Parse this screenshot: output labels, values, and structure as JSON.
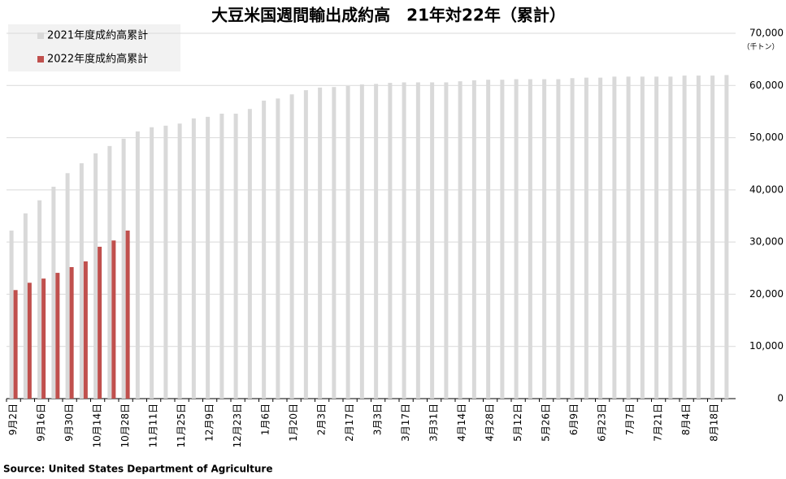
{
  "chart_data": {
    "type": "bar",
    "title": "大豆米国週間輸出成約高　21年対22年（累計）",
    "y_axis_unit": "（千トン）",
    "source": "Source: United States Department of Agriculture",
    "categories": [
      "9月2日",
      null,
      "9月16日",
      null,
      "9月30日",
      null,
      "10月14日",
      null,
      "10月28日",
      null,
      "11月11日",
      null,
      "11月25日",
      null,
      "12月9日",
      null,
      "12月23日",
      null,
      "1月6日",
      null,
      "1月20日",
      null,
      "2月3日",
      null,
      "2月17日",
      null,
      "3月3日",
      null,
      "3月17日",
      null,
      "3月31日",
      null,
      "4月14日",
      null,
      "4月28日",
      null,
      "5月12日",
      null,
      "5月26日",
      null,
      "6月9日",
      null,
      "6月23日",
      null,
      "7月7日",
      null,
      "7月21日",
      null,
      "8月4日",
      null,
      "8月18日",
      null
    ],
    "series": [
      {
        "name": "2021年度成約高累計",
        "color": "#d9d9d9",
        "values": [
          32200,
          35500,
          38000,
          40600,
          43200,
          45100,
          47000,
          48400,
          49800,
          51200,
          52000,
          52300,
          52700,
          53700,
          54000,
          54600,
          54600,
          55500,
          57100,
          57500,
          58300,
          59100,
          59600,
          59700,
          59900,
          60200,
          60300,
          60500,
          60600,
          60600,
          60600,
          60600,
          60800,
          61000,
          61100,
          61100,
          61200,
          61200,
          61200,
          61200,
          61400,
          61500,
          61500,
          61700,
          61700,
          61700,
          61700,
          61700,
          61900,
          61900,
          61900,
          62000
        ]
      },
      {
        "name": "2022年度成約高累計",
        "color": "#c0504d",
        "values": [
          20800,
          22200,
          23000,
          24100,
          25200,
          26300,
          29100,
          30300,
          32200,
          null,
          null,
          null,
          null,
          null,
          null,
          null,
          null,
          null,
          null,
          null,
          null,
          null,
          null,
          null,
          null,
          null,
          null,
          null,
          null,
          null,
          null,
          null,
          null,
          null,
          null,
          null,
          null,
          null,
          null,
          null,
          null,
          null,
          null,
          null,
          null,
          null,
          null,
          null,
          null,
          null,
          null,
          null
        ]
      }
    ],
    "ylim": [
      0,
      70000
    ],
    "yticks": [
      0,
      {
        "value": 10000,
        "label": "10,000"
      },
      {
        "value": 20000,
        "label": "20,000"
      },
      {
        "value": 30000,
        "label": "30,000"
      },
      {
        "value": 40000,
        "label": "40,000"
      },
      {
        "value": 50000,
        "label": "50,000"
      },
      {
        "value": 60000,
        "label": "60,000"
      },
      {
        "value": 70000,
        "label": "70,000"
      }
    ],
    "grid": true,
    "legend": "top-left"
  }
}
